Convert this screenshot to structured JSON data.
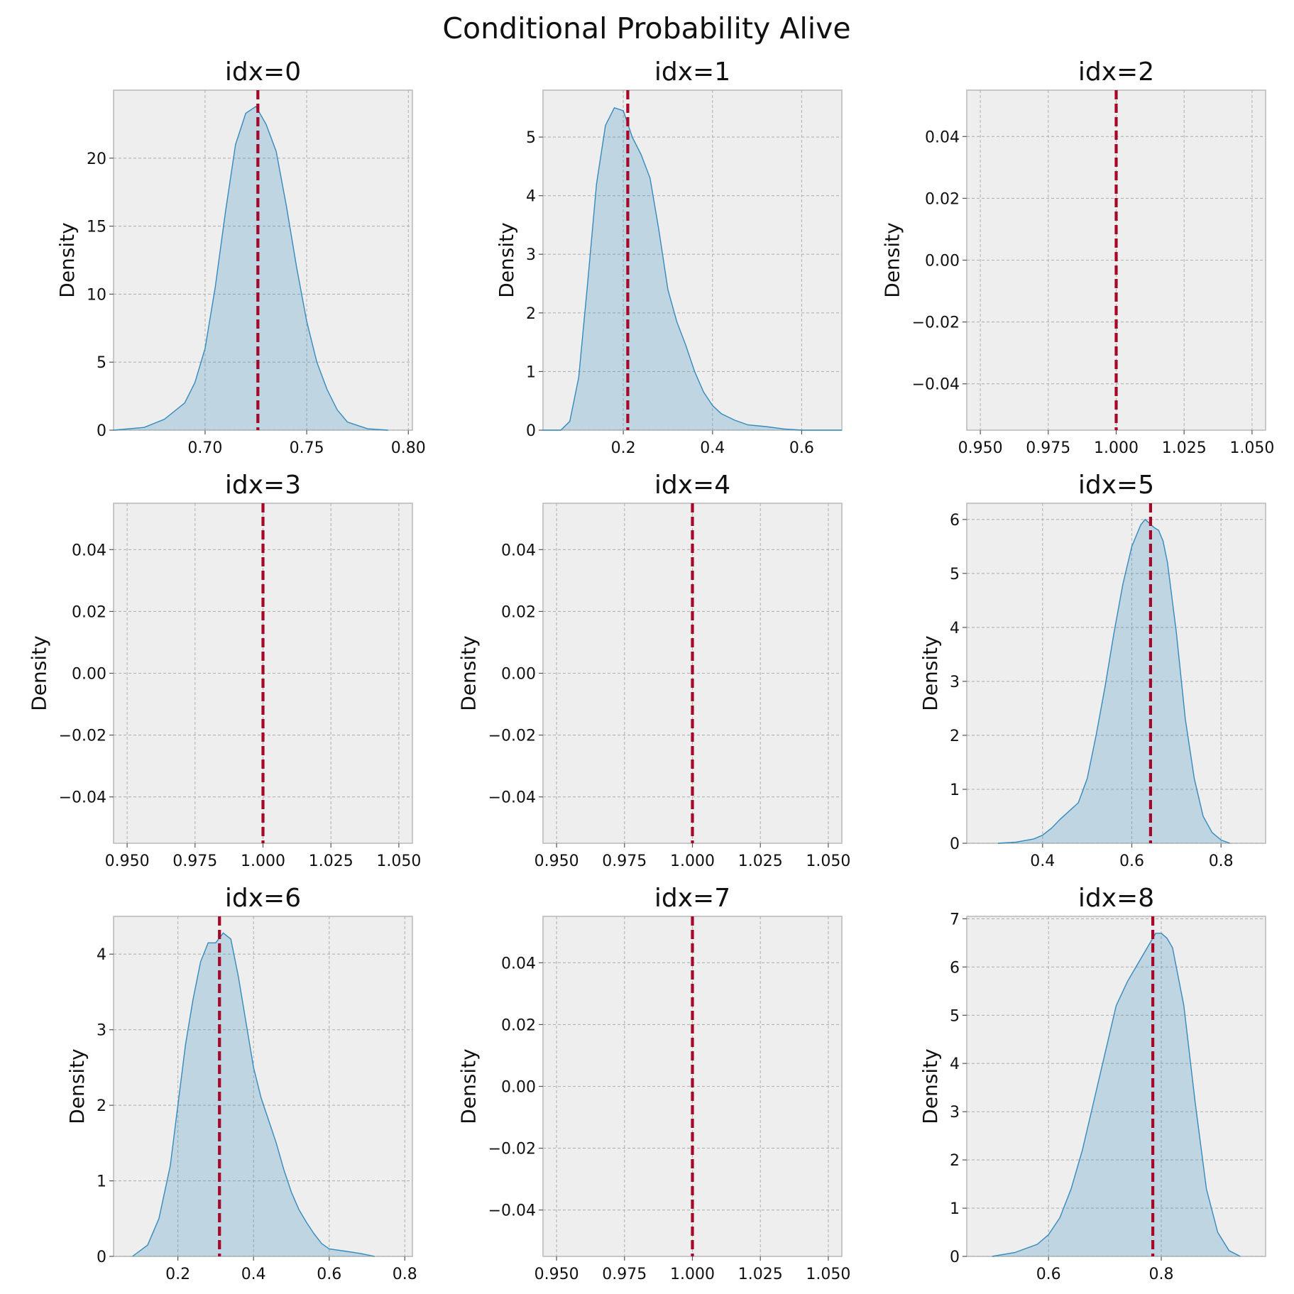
{
  "title": "Conditional Probability Alive",
  "chart_data": [
    {
      "type": "area",
      "title": "idx=0",
      "xlabel": "",
      "ylabel": "Density",
      "xlim": [
        0.655,
        0.802
      ],
      "ylim": [
        0,
        25
      ],
      "xticks": [
        0.7,
        0.75,
        0.8
      ],
      "xtick_labels": [
        "0.70",
        "0.75",
        "0.80"
      ],
      "yticks": [
        0,
        5,
        10,
        15,
        20
      ],
      "ytick_labels": [
        "0",
        "5",
        "10",
        "15",
        "20"
      ],
      "ref_x": 0.726,
      "x": [
        0.655,
        0.67,
        0.68,
        0.69,
        0.695,
        0.7,
        0.705,
        0.71,
        0.715,
        0.72,
        0.725,
        0.73,
        0.735,
        0.74,
        0.745,
        0.75,
        0.755,
        0.76,
        0.765,
        0.77,
        0.78,
        0.79
      ],
      "y": [
        0,
        0.2,
        0.8,
        2.0,
        3.5,
        6.0,
        10.5,
        16.0,
        21.0,
        23.3,
        23.8,
        22.5,
        20.5,
        16.5,
        12.0,
        8.0,
        5.0,
        3.0,
        1.5,
        0.6,
        0.1,
        0
      ]
    },
    {
      "type": "area",
      "title": "idx=1",
      "xlabel": "",
      "ylabel": "Density",
      "xlim": [
        0.02,
        0.69
      ],
      "ylim": [
        0,
        5.8
      ],
      "xticks": [
        0.2,
        0.4,
        0.6
      ],
      "xtick_labels": [
        "0.2",
        "0.4",
        "0.6"
      ],
      "yticks": [
        0,
        1,
        2,
        3,
        4,
        5
      ],
      "ytick_labels": [
        "0",
        "1",
        "2",
        "3",
        "4",
        "5"
      ],
      "ref_x": 0.21,
      "x": [
        0.02,
        0.06,
        0.08,
        0.1,
        0.12,
        0.14,
        0.16,
        0.18,
        0.2,
        0.22,
        0.24,
        0.26,
        0.28,
        0.3,
        0.32,
        0.34,
        0.36,
        0.38,
        0.4,
        0.42,
        0.45,
        0.48,
        0.52,
        0.56,
        0.6,
        0.69
      ],
      "y": [
        0,
        0,
        0.15,
        0.9,
        2.5,
        4.2,
        5.2,
        5.5,
        5.45,
        5.0,
        4.7,
        4.3,
        3.4,
        2.4,
        1.85,
        1.45,
        1.0,
        0.65,
        0.42,
        0.28,
        0.17,
        0.09,
        0.06,
        0.02,
        0,
        0
      ]
    },
    {
      "type": "area",
      "title": "idx=2",
      "xlabel": "",
      "ylabel": "Density",
      "xlim": [
        0.945,
        1.055
      ],
      "ylim": [
        -0.055,
        0.055
      ],
      "xticks": [
        0.95,
        0.975,
        1.0,
        1.025,
        1.05
      ],
      "xtick_labels": [
        "0.950",
        "0.975",
        "1.000",
        "1.025",
        "1.050"
      ],
      "yticks": [
        -0.04,
        -0.02,
        0,
        0.02,
        0.04
      ],
      "ytick_labels": [
        "−0.04",
        "−0.02",
        "0.00",
        "0.02",
        "0.04"
      ],
      "ref_x": 1.0,
      "x": [],
      "y": []
    },
    {
      "type": "area",
      "title": "idx=3",
      "xlabel": "",
      "ylabel": "Density",
      "xlim": [
        0.945,
        1.055
      ],
      "ylim": [
        -0.055,
        0.055
      ],
      "xticks": [
        0.95,
        0.975,
        1.0,
        1.025,
        1.05
      ],
      "xtick_labels": [
        "0.950",
        "0.975",
        "1.000",
        "1.025",
        "1.050"
      ],
      "yticks": [
        -0.04,
        -0.02,
        0,
        0.02,
        0.04
      ],
      "ytick_labels": [
        "−0.04",
        "−0.02",
        "0.00",
        "0.02",
        "0.04"
      ],
      "ref_x": 1.0,
      "x": [],
      "y": []
    },
    {
      "type": "area",
      "title": "idx=4",
      "xlabel": "",
      "ylabel": "Density",
      "xlim": [
        0.945,
        1.055
      ],
      "ylim": [
        -0.055,
        0.055
      ],
      "xticks": [
        0.95,
        0.975,
        1.0,
        1.025,
        1.05
      ],
      "xtick_labels": [
        "0.950",
        "0.975",
        "1.000",
        "1.025",
        "1.050"
      ],
      "yticks": [
        -0.04,
        -0.02,
        0,
        0.02,
        0.04
      ],
      "ytick_labels": [
        "−0.04",
        "−0.02",
        "0.00",
        "0.02",
        "0.04"
      ],
      "ref_x": 1.0,
      "x": [],
      "y": []
    },
    {
      "type": "area",
      "title": "idx=5",
      "xlabel": "",
      "ylabel": "Density",
      "xlim": [
        0.23,
        0.9
      ],
      "ylim": [
        0,
        6.3
      ],
      "xticks": [
        0.4,
        0.6,
        0.8
      ],
      "xtick_labels": [
        "0.4",
        "0.6",
        "0.8"
      ],
      "yticks": [
        0,
        1,
        2,
        3,
        4,
        5,
        6
      ],
      "ytick_labels": [
        "0",
        "1",
        "2",
        "3",
        "4",
        "5",
        "6"
      ],
      "ref_x": 0.642,
      "x": [
        0.3,
        0.34,
        0.38,
        0.4,
        0.42,
        0.44,
        0.46,
        0.48,
        0.5,
        0.52,
        0.54,
        0.56,
        0.58,
        0.6,
        0.62,
        0.63,
        0.65,
        0.66,
        0.67,
        0.68,
        0.7,
        0.72,
        0.74,
        0.76,
        0.78,
        0.8,
        0.82
      ],
      "y": [
        0,
        0.02,
        0.08,
        0.15,
        0.28,
        0.45,
        0.6,
        0.75,
        1.2,
        2.0,
        2.9,
        3.9,
        4.8,
        5.5,
        5.9,
        6.0,
        5.85,
        5.8,
        5.6,
        5.2,
        3.9,
        2.3,
        1.2,
        0.5,
        0.2,
        0.06,
        0
      ]
    },
    {
      "type": "area",
      "title": "idx=6",
      "xlabel": "",
      "ylabel": "Density",
      "xlim": [
        0.03,
        0.82
      ],
      "ylim": [
        0,
        4.5
      ],
      "xticks": [
        0.2,
        0.4,
        0.6,
        0.8
      ],
      "xtick_labels": [
        "0.2",
        "0.4",
        "0.6",
        "0.8"
      ],
      "yticks": [
        0,
        1,
        2,
        3,
        4
      ],
      "ytick_labels": [
        "0",
        "1",
        "2",
        "3",
        "4"
      ],
      "ref_x": 0.31,
      "x": [
        0.08,
        0.12,
        0.15,
        0.18,
        0.2,
        0.22,
        0.24,
        0.26,
        0.28,
        0.3,
        0.32,
        0.34,
        0.36,
        0.38,
        0.4,
        0.42,
        0.44,
        0.46,
        0.48,
        0.5,
        0.52,
        0.54,
        0.56,
        0.58,
        0.6,
        0.64,
        0.68,
        0.72
      ],
      "y": [
        0,
        0.15,
        0.5,
        1.2,
        2.0,
        2.8,
        3.4,
        3.9,
        4.15,
        4.15,
        4.28,
        4.2,
        3.7,
        3.1,
        2.5,
        2.1,
        1.8,
        1.5,
        1.15,
        0.85,
        0.62,
        0.45,
        0.3,
        0.17,
        0.1,
        0.07,
        0.04,
        0
      ]
    },
    {
      "type": "area",
      "title": "idx=7",
      "xlabel": "",
      "ylabel": "Density",
      "xlim": [
        0.945,
        1.055
      ],
      "ylim": [
        -0.055,
        0.055
      ],
      "xticks": [
        0.95,
        0.975,
        1.0,
        1.025,
        1.05
      ],
      "xtick_labels": [
        "0.950",
        "0.975",
        "1.000",
        "1.025",
        "1.050"
      ],
      "yticks": [
        -0.04,
        -0.02,
        0,
        0.02,
        0.04
      ],
      "ytick_labels": [
        "−0.04",
        "−0.02",
        "0.00",
        "0.02",
        "0.04"
      ],
      "ref_x": 1.0,
      "x": [],
      "y": []
    },
    {
      "type": "area",
      "title": "idx=8",
      "xlabel": "",
      "ylabel": "Density",
      "xlim": [
        0.455,
        0.985
      ],
      "ylim": [
        0,
        7.05
      ],
      "xticks": [
        0.6,
        0.8
      ],
      "xtick_labels": [
        "0.6",
        "0.8"
      ],
      "yticks": [
        0,
        1,
        2,
        3,
        4,
        5,
        6,
        7
      ],
      "ytick_labels": [
        "0",
        "1",
        "2",
        "3",
        "4",
        "5",
        "6",
        "7"
      ],
      "ref_x": 0.785,
      "x": [
        0.5,
        0.54,
        0.58,
        0.6,
        0.62,
        0.64,
        0.66,
        0.68,
        0.7,
        0.72,
        0.74,
        0.76,
        0.78,
        0.79,
        0.8,
        0.81,
        0.82,
        0.84,
        0.86,
        0.88,
        0.9,
        0.92,
        0.94
      ],
      "y": [
        0,
        0.08,
        0.25,
        0.45,
        0.8,
        1.4,
        2.2,
        3.2,
        4.2,
        5.2,
        5.7,
        6.1,
        6.5,
        6.7,
        6.7,
        6.6,
        6.4,
        5.2,
        3.2,
        1.4,
        0.5,
        0.12,
        0
      ]
    }
  ]
}
